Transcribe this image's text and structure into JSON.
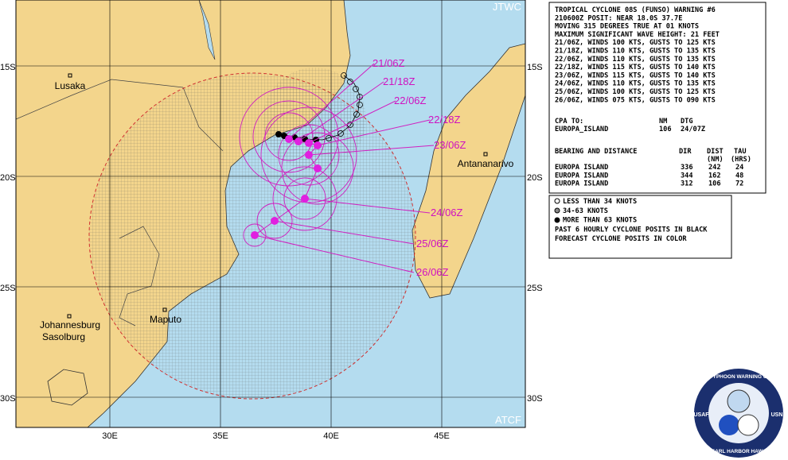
{
  "map": {
    "agency_top": "JTWC",
    "agency_bottom": "ATCF",
    "lat_labels": [
      "15S",
      "20S",
      "25S",
      "30S"
    ],
    "lon_labels": [
      "30E",
      "35E",
      "40E",
      "45E"
    ],
    "cities": [
      "Lusaka",
      "Antananarivo",
      "Johannesburg",
      "Sasolburg",
      "Maputo"
    ],
    "track_labels": [
      "21/06Z",
      "21/18Z",
      "22/06Z",
      "22/18Z",
      "23/06Z",
      "24/06Z",
      "25/06Z",
      "26/06Z"
    ]
  },
  "warning": {
    "lines": [
      "TROPICAL CYCLONE 08S (FUNSO) WARNING #6",
      "210600Z POSIT: NEAR 18.0S 37.7E",
      "MOVING 315 DEGREES TRUE AT 01 KNOTS",
      "MAXIMUM SIGNIFICANT WAVE HEIGHT: 21 FEET",
      "21/06Z, WINDS 100 KTS, GUSTS TO 125 KTS",
      "21/18Z, WINDS 110 KTS, GUSTS TO 135 KTS",
      "22/06Z, WINDS 110 KTS, GUSTS TO 135 KTS",
      "22/18Z, WINDS 115 KTS, GUSTS TO 140 KTS",
      "23/06Z, WINDS 115 KTS, GUSTS TO 140 KTS",
      "24/06Z, WINDS 110 KTS, GUSTS TO 135 KTS",
      "25/06Z, WINDS 100 KTS, GUSTS TO 125 KTS",
      "26/06Z, WINDS 075 KTS, GUSTS TO 090 KTS"
    ]
  },
  "cpa": {
    "header": [
      "CPA TO:",
      "NM",
      "DTG"
    ],
    "rows": [
      [
        "EUROPA_ISLAND",
        "106",
        "24/07Z"
      ]
    ]
  },
  "bearing": {
    "header": [
      "BEARING AND DISTANCE",
      "DIR",
      "DIST",
      "TAU"
    ],
    "units": [
      "(NM)",
      "(HRS)"
    ],
    "rows": [
      [
        "EUROPA ISLAND",
        "336",
        "242",
        "24"
      ],
      [
        "EUROPA ISLAND",
        "344",
        "162",
        "48"
      ],
      [
        "EUROPA ISLAND",
        "312",
        "106",
        "72"
      ]
    ]
  },
  "legend": [
    "LESS THAN 34 KNOTS",
    "34-63 KNOTS",
    "MORE THAN 63 KNOTS",
    "PAST 6 HOURLY CYCLONE POSITS IN BLACK",
    "FORECAST CYCLONE POSITS IN COLOR"
  ],
  "seal": {
    "top": "JOINT TYPHOON WARNING CENTER",
    "bottom": "PEARL HARBOR HAWAII",
    "left": "USAF",
    "right": "USN"
  }
}
